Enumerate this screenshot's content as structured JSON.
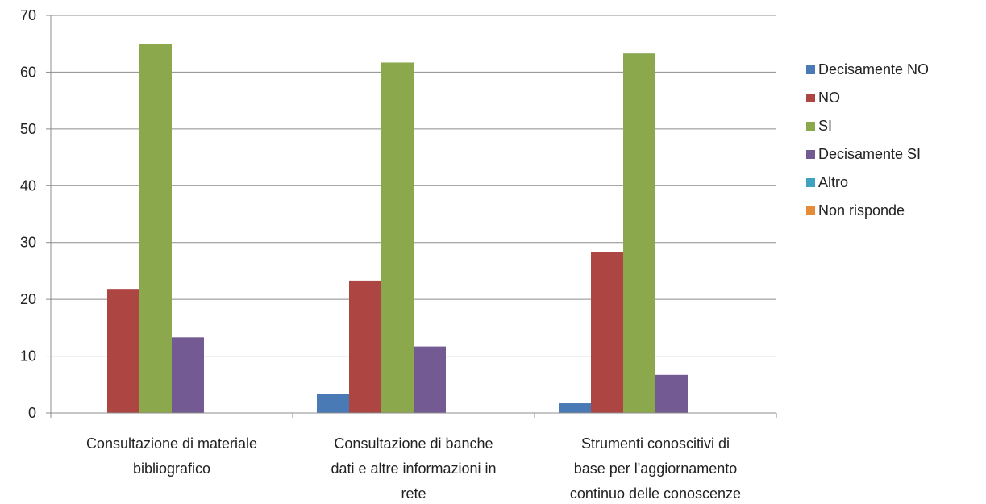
{
  "chart_data": {
    "type": "bar",
    "title": "",
    "xlabel": "",
    "ylabel": "",
    "ylim": [
      0,
      70
    ],
    "yticks": [
      0,
      10,
      20,
      30,
      40,
      50,
      60,
      70
    ],
    "grid": true,
    "legend_position": "right",
    "categories": [
      [
        "Consultazione di materiale",
        "bibliografico"
      ],
      [
        "Consultazione di banche",
        "dati e altre informazioni in",
        "rete"
      ],
      [
        "Strumenti conoscitivi di",
        "base per l'aggiornamento",
        "continuo delle conoscenze"
      ]
    ],
    "series": [
      {
        "name": "Decisamente NO",
        "color": "#4a7ab5",
        "values": [
          0,
          3.3,
          1.7
        ]
      },
      {
        "name": "NO",
        "color": "#ad4543",
        "values": [
          21.7,
          23.3,
          28.3
        ]
      },
      {
        "name": "SI",
        "color": "#8ba84c",
        "values": [
          65,
          61.7,
          63.3
        ]
      },
      {
        "name": "Decisamente SI",
        "color": "#735a93",
        "values": [
          13.3,
          11.7,
          6.7
        ]
      },
      {
        "name": "Altro",
        "color": "#3fa2bf",
        "values": [
          0,
          0,
          0
        ]
      },
      {
        "name": "Non risponde",
        "color": "#e58b3a",
        "values": [
          0,
          0,
          0
        ]
      }
    ]
  }
}
